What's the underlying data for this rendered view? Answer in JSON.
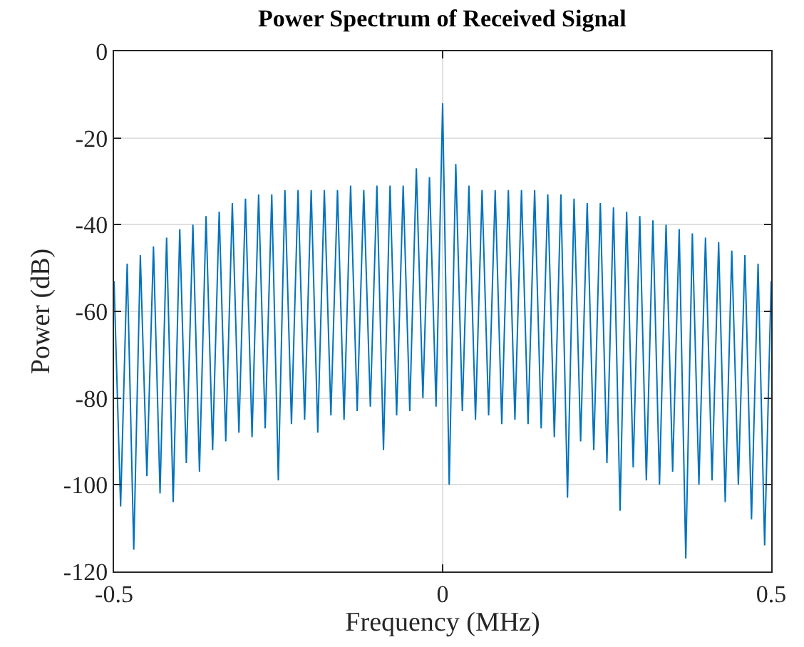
{
  "chart_data": {
    "type": "line",
    "title": "Power Spectrum of Received Signal",
    "xlabel": "Frequency (MHz)",
    "ylabel": "Power (dB)",
    "xlim": [
      -0.5,
      0.5
    ],
    "xticks": [
      -0.5,
      0,
      0.5
    ],
    "ylim": [
      -120,
      0
    ],
    "yticks": [
      -120,
      -100,
      -80,
      -60,
      -40,
      -20,
      0
    ],
    "grid": true,
    "series": [
      {
        "color": "#0072bd",
        "x": [
          -0.5,
          -0.49,
          -0.48,
          -0.47,
          -0.46,
          -0.45,
          -0.44,
          -0.43,
          -0.42,
          -0.41,
          -0.4,
          -0.39,
          -0.38,
          -0.37,
          -0.36,
          -0.35,
          -0.34,
          -0.33,
          -0.32,
          -0.31,
          -0.3,
          -0.29,
          -0.28,
          -0.27,
          -0.26,
          -0.25,
          -0.24,
          -0.23,
          -0.22,
          -0.21,
          -0.2,
          -0.19,
          -0.18,
          -0.17,
          -0.16,
          -0.15,
          -0.14,
          -0.13,
          -0.12,
          -0.11,
          -0.1,
          -0.09,
          -0.08,
          -0.07,
          -0.06,
          -0.05,
          -0.04,
          -0.03,
          -0.02,
          -0.01,
          0,
          0.01,
          0.02,
          0.03,
          0.04,
          0.05,
          0.06,
          0.07,
          0.08,
          0.09,
          0.1,
          0.11,
          0.12,
          0.13,
          0.14,
          0.15,
          0.16,
          0.17,
          0.18,
          0.19,
          0.2,
          0.21,
          0.22,
          0.23,
          0.24,
          0.25,
          0.26,
          0.27,
          0.28,
          0.29,
          0.3,
          0.31,
          0.32,
          0.33,
          0.34,
          0.35,
          0.36,
          0.37,
          0.38,
          0.39,
          0.4,
          0.41,
          0.42,
          0.43,
          0.44,
          0.45,
          0.46,
          0.47,
          0.48,
          0.49,
          0.5
        ],
        "values": [
          -53,
          -105,
          -49,
          -115,
          -47,
          -98,
          -45,
          -102,
          -43,
          -104,
          -41,
          -95,
          -40,
          -97,
          -38,
          -92,
          -37,
          -90,
          -35,
          -88,
          -34,
          -89,
          -33,
          -87,
          -33,
          -99,
          -32,
          -86,
          -32,
          -85,
          -32,
          -88,
          -32,
          -84,
          -32,
          -85,
          -31,
          -83,
          -32,
          -82,
          -31,
          -92,
          -31,
          -84,
          -31,
          -83,
          -27,
          -80,
          -29,
          -82,
          -12,
          -100,
          -26,
          -83,
          -31,
          -85,
          -32,
          -84,
          -32,
          -86,
          -32,
          -85,
          -32,
          -86,
          -32,
          -87,
          -33,
          -89,
          -33,
          -103,
          -34,
          -90,
          -35,
          -92,
          -35,
          -95,
          -36,
          -106,
          -37,
          -96,
          -38,
          -99,
          -39,
          -100,
          -40,
          -97,
          -41,
          -117,
          -42,
          -100,
          -43,
          -99,
          -44,
          -104,
          -46,
          -100,
          -47,
          -108,
          -49,
          -114,
          -53
        ]
      }
    ]
  }
}
